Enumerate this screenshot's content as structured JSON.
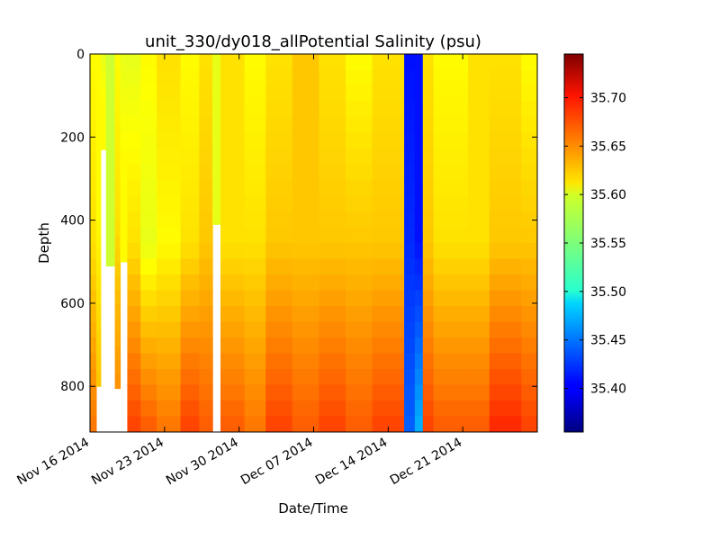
{
  "chart_data": {
    "type": "heatmap",
    "title": "unit_330/dy018_allPotential Salinity (psu)",
    "xlabel": "Date/Time",
    "ylabel": "Depth",
    "x_range": [
      "2014-11-16",
      "2014-12-28"
    ],
    "y_range": [
      0,
      910
    ],
    "y_inverted": true,
    "x_tick_labels": [
      "Nov 16 2014",
      "Nov 23 2014",
      "Nov 30 2014",
      "Dec 07 2014",
      "Dec 14 2014",
      "Dec 21 2014"
    ],
    "x_tick_dates": [
      "2014-11-16",
      "2014-11-23",
      "2014-11-30",
      "2014-12-07",
      "2014-12-14",
      "2014-12-21"
    ],
    "y_ticks": [
      0,
      200,
      400,
      600,
      800
    ],
    "colorbar": {
      "colormap": "jet",
      "range": [
        35.355,
        35.745
      ],
      "ticks": [
        35.4,
        35.45,
        35.5,
        35.55,
        35.6,
        35.65,
        35.7
      ],
      "tick_labels": [
        "35.40",
        "35.45",
        "35.50",
        "35.55",
        "35.60",
        "35.65",
        "35.70"
      ]
    },
    "profiles": [
      {
        "start": "2014-11-16",
        "end": "2014-11-16T14:00",
        "max_depth": 910,
        "surface": 35.6,
        "mid": 35.61,
        "deep": 35.65
      },
      {
        "start": "2014-11-16T14:00",
        "end": "2014-11-17",
        "max_depth": 800,
        "surface": 35.6,
        "mid": 35.6,
        "deep": 35.62
      },
      {
        "start": "2014-11-17",
        "end": "2014-11-17T12:00",
        "max_depth": 230,
        "surface": 35.59,
        "mid": 35.6,
        "deep": 35.6
      },
      {
        "start": "2014-11-17T12:00",
        "end": "2014-11-18T08:00",
        "max_depth": 510,
        "surface": 35.58,
        "mid": 35.58,
        "deep": 35.58
      },
      {
        "start": "2014-11-18T08:00",
        "end": "2014-11-18T20:00",
        "max_depth": 805,
        "surface": 35.6,
        "mid": 35.61,
        "deep": 35.64
      },
      {
        "start": "2014-11-18T20:00",
        "end": "2014-11-19T12:00",
        "max_depth": 500,
        "surface": 35.59,
        "mid": 35.6,
        "deep": 35.6
      },
      {
        "start": "2014-11-19T12:00",
        "end": "2014-11-20T18:00",
        "max_depth": 910,
        "surface": 35.59,
        "mid": 35.61,
        "deep": 35.67
      },
      {
        "start": "2014-11-20T18:00",
        "end": "2014-11-22T06:00",
        "max_depth": 910,
        "surface": 35.6,
        "mid": 35.59,
        "deep": 35.66
      },
      {
        "start": "2014-11-22T06:00",
        "end": "2014-11-24T12:00",
        "max_depth": 910,
        "surface": 35.61,
        "mid": 35.6,
        "deep": 35.65
      },
      {
        "start": "2014-11-24T12:00",
        "end": "2014-11-26T06:00",
        "max_depth": 910,
        "surface": 35.6,
        "mid": 35.61,
        "deep": 35.67
      },
      {
        "start": "2014-11-26T06:00",
        "end": "2014-11-27T12:00",
        "max_depth": 910,
        "surface": 35.61,
        "mid": 35.62,
        "deep": 35.66
      },
      {
        "start": "2014-11-27T12:00",
        "end": "2014-11-28T06:00",
        "max_depth": 410,
        "surface": 35.59,
        "mid": 35.59,
        "deep": 35.59
      },
      {
        "start": "2014-11-28T06:00",
        "end": "2014-11-30T12:00",
        "max_depth": 910,
        "surface": 35.61,
        "mid": 35.61,
        "deep": 35.66
      },
      {
        "start": "2014-11-30T12:00",
        "end": "2014-12-02T12:00",
        "max_depth": 910,
        "surface": 35.6,
        "mid": 35.61,
        "deep": 35.65
      },
      {
        "start": "2014-12-02T12:00",
        "end": "2014-12-05T00:00",
        "max_depth": 910,
        "surface": 35.61,
        "mid": 35.62,
        "deep": 35.67
      },
      {
        "start": "2014-12-05T00:00",
        "end": "2014-12-07T12:00",
        "max_depth": 910,
        "surface": 35.62,
        "mid": 35.62,
        "deep": 35.66
      },
      {
        "start": "2014-12-07T12:00",
        "end": "2014-12-10T00:00",
        "max_depth": 910,
        "surface": 35.61,
        "mid": 35.62,
        "deep": 35.67
      },
      {
        "start": "2014-12-10T00:00",
        "end": "2014-12-12T12:00",
        "max_depth": 910,
        "surface": 35.6,
        "mid": 35.62,
        "deep": 35.66
      },
      {
        "start": "2014-12-12T12:00",
        "end": "2014-12-15T12:00",
        "max_depth": 910,
        "surface": 35.61,
        "mid": 35.62,
        "deep": 35.67
      },
      {
        "start": "2014-12-15T12:00",
        "end": "2014-12-16T12:00",
        "max_depth": 910,
        "surface": 35.41,
        "mid": 35.42,
        "deep": 35.44
      },
      {
        "start": "2014-12-16T12:00",
        "end": "2014-12-17T06:00",
        "max_depth": 910,
        "surface": 35.41,
        "mid": 35.41,
        "deep": 35.47
      },
      {
        "start": "2014-12-17T06:00",
        "end": "2014-12-18T06:00",
        "max_depth": 910,
        "surface": 35.61,
        "mid": 35.62,
        "deep": 35.67
      },
      {
        "start": "2014-12-18T06:00",
        "end": "2014-12-21T12:00",
        "max_depth": 910,
        "surface": 35.6,
        "mid": 35.61,
        "deep": 35.66
      },
      {
        "start": "2014-12-21T12:00",
        "end": "2014-12-23T12:00",
        "max_depth": 910,
        "surface": 35.61,
        "mid": 35.61,
        "deep": 35.66
      },
      {
        "start": "2014-12-23T12:00",
        "end": "2014-12-26T12:00",
        "max_depth": 910,
        "surface": 35.61,
        "mid": 35.62,
        "deep": 35.68
      },
      {
        "start": "2014-12-26T12:00",
        "end": "2014-12-28",
        "max_depth": 910,
        "surface": 35.6,
        "mid": 35.62,
        "deep": 35.67
      }
    ]
  }
}
